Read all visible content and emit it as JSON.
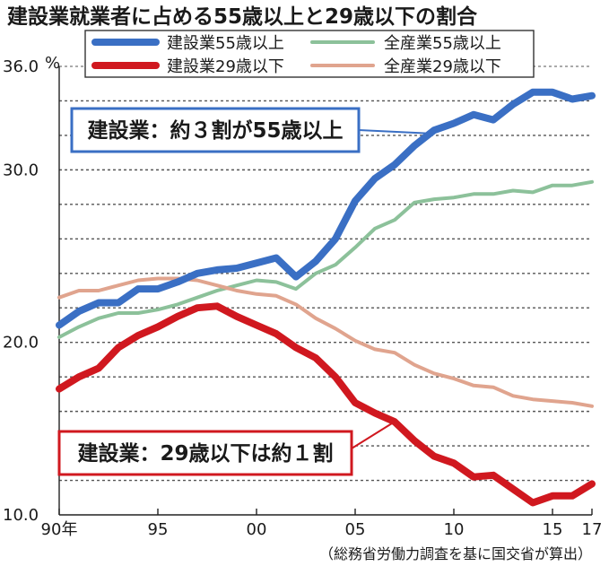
{
  "chart_data": {
    "type": "line",
    "title": "建設業就業者に占める55歳以上と29歳以下の割合",
    "ylabel": "%",
    "ylim": [
      10,
      36
    ],
    "y_ticks": [
      "36.0",
      "30.0",
      "20.0",
      "10.0"
    ],
    "y_tick_values": [
      36,
      30,
      20,
      10
    ],
    "y_gridlines": [
      12,
      14,
      16,
      18,
      20,
      22,
      24,
      26,
      28,
      30,
      32,
      34
    ],
    "grid": "horizontal dashed",
    "xlim": [
      1990,
      2017
    ],
    "x_ticks": [
      "90年",
      "95",
      "00",
      "05",
      "10",
      "15",
      "17"
    ],
    "x_tick_values": [
      1990,
      1995,
      2000,
      2005,
      2010,
      2015,
      2017
    ],
    "x": [
      1990,
      1991,
      1992,
      1993,
      1994,
      1995,
      1996,
      1997,
      1998,
      1999,
      2000,
      2001,
      2002,
      2003,
      2004,
      2005,
      2006,
      2007,
      2008,
      2009,
      2010,
      2011,
      2012,
      2013,
      2014,
      2015,
      2016,
      2017
    ],
    "series": [
      {
        "name": "建設業55歳以上",
        "color": "#3a6fc4",
        "width": 8,
        "values": [
          21.0,
          21.8,
          22.3,
          22.3,
          23.1,
          23.1,
          23.5,
          24.0,
          24.2,
          24.3,
          24.6,
          24.9,
          23.8,
          24.7,
          26.0,
          28.2,
          29.5,
          30.3,
          31.4,
          32.3,
          32.7,
          33.2,
          32.9,
          33.8,
          34.5,
          34.5,
          34.1,
          34.3
        ]
      },
      {
        "name": "全産業55歳以上",
        "color": "#8cc19a",
        "width": 4,
        "values": [
          20.3,
          20.9,
          21.4,
          21.7,
          21.7,
          21.9,
          22.2,
          22.6,
          23.0,
          23.3,
          23.6,
          23.5,
          23.1,
          24.0,
          24.5,
          25.5,
          26.6,
          27.1,
          28.1,
          28.3,
          28.4,
          28.6,
          28.6,
          28.8,
          28.7,
          29.1,
          29.1,
          29.3
        ]
      },
      {
        "name": "建設業29歳以下",
        "color": "#d0181f",
        "width": 8,
        "values": [
          17.3,
          18.0,
          18.5,
          19.7,
          20.4,
          20.9,
          21.5,
          22.0,
          22.1,
          21.5,
          21.0,
          20.5,
          19.7,
          19.1,
          18.0,
          16.5,
          15.9,
          15.4,
          14.3,
          13.4,
          13.0,
          12.2,
          12.3,
          11.5,
          10.7,
          11.1,
          11.1,
          11.8
        ]
      },
      {
        "name": "全産業29歳以下",
        "color": "#e0a48e",
        "width": 4,
        "values": [
          22.6,
          23.0,
          23.0,
          23.3,
          23.6,
          23.7,
          23.7,
          23.6,
          23.3,
          23.0,
          22.8,
          22.7,
          22.2,
          21.4,
          20.8,
          20.1,
          19.6,
          19.4,
          18.7,
          18.2,
          17.9,
          17.5,
          17.4,
          16.9,
          16.7,
          16.6,
          16.5,
          16.3
        ]
      }
    ],
    "legend": "top",
    "annotations": [
      {
        "text": "建設業：約３割が55歳以上",
        "color": "#3a6fc4",
        "anchor_year": 2009,
        "anchor_value": 32.1
      },
      {
        "text": "建設業：29歳以下は約１割",
        "color": "#d0181f",
        "anchor_year": 2007,
        "anchor_value": 15.4
      }
    ],
    "source": "（総務省労働力調査を基に国交省が算出）"
  }
}
